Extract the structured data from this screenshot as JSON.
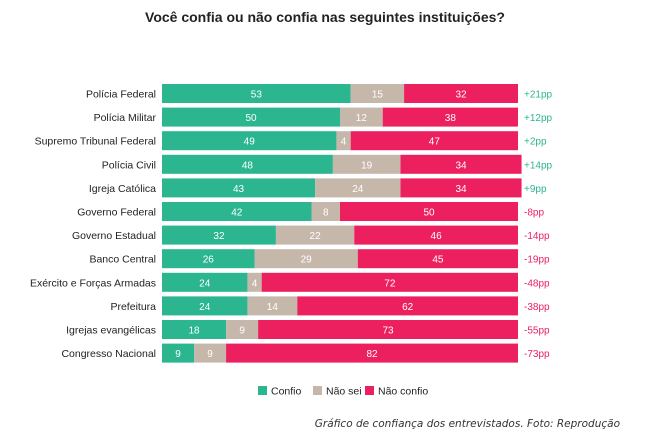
{
  "chart_data": {
    "type": "bar",
    "stacked": true,
    "orientation": "horizontal",
    "title": "Você confia ou não confia nas seguintes instituições?",
    "categories": [
      "Polícia Federal",
      "Polícia Militar",
      "Supremo Tribunal Federal",
      "Polícia Civil",
      "Igreja Católica",
      "Governo Federal",
      "Governo Estadual",
      "Banco Central",
      "Exército e Forças Armadas",
      "Prefeitura",
      "Igrejas evangélicas",
      "Congresso Nacional"
    ],
    "series": [
      {
        "name": "Confio",
        "color": "#2bb68f",
        "values": [
          53,
          50,
          49,
          48,
          43,
          42,
          32,
          26,
          24,
          24,
          18,
          9
        ]
      },
      {
        "name": "Não sei",
        "color": "#c6b7ab",
        "values": [
          15,
          12,
          4,
          19,
          24,
          8,
          22,
          29,
          4,
          14,
          9,
          9
        ]
      },
      {
        "name": "Não confio",
        "color": "#ec1f5f",
        "values": [
          32,
          38,
          47,
          34,
          34,
          50,
          46,
          45,
          72,
          62,
          73,
          82
        ]
      }
    ],
    "net": [
      "+21pp",
      "+12pp",
      "+2pp",
      "+14pp",
      "+9pp",
      "-8pp",
      "-14pp",
      "-19pp",
      "-48pp",
      "-38pp",
      "-55pp",
      "-73pp"
    ],
    "net_colors": {
      "positive": "#2bb68f",
      "negative": "#ec1f5f"
    },
    "legend_position": "bottom-center",
    "xlim": [
      0,
      100
    ],
    "grid": false
  },
  "caption": "Gráfico de confiança dos entrevistados. Foto: Reprodução"
}
